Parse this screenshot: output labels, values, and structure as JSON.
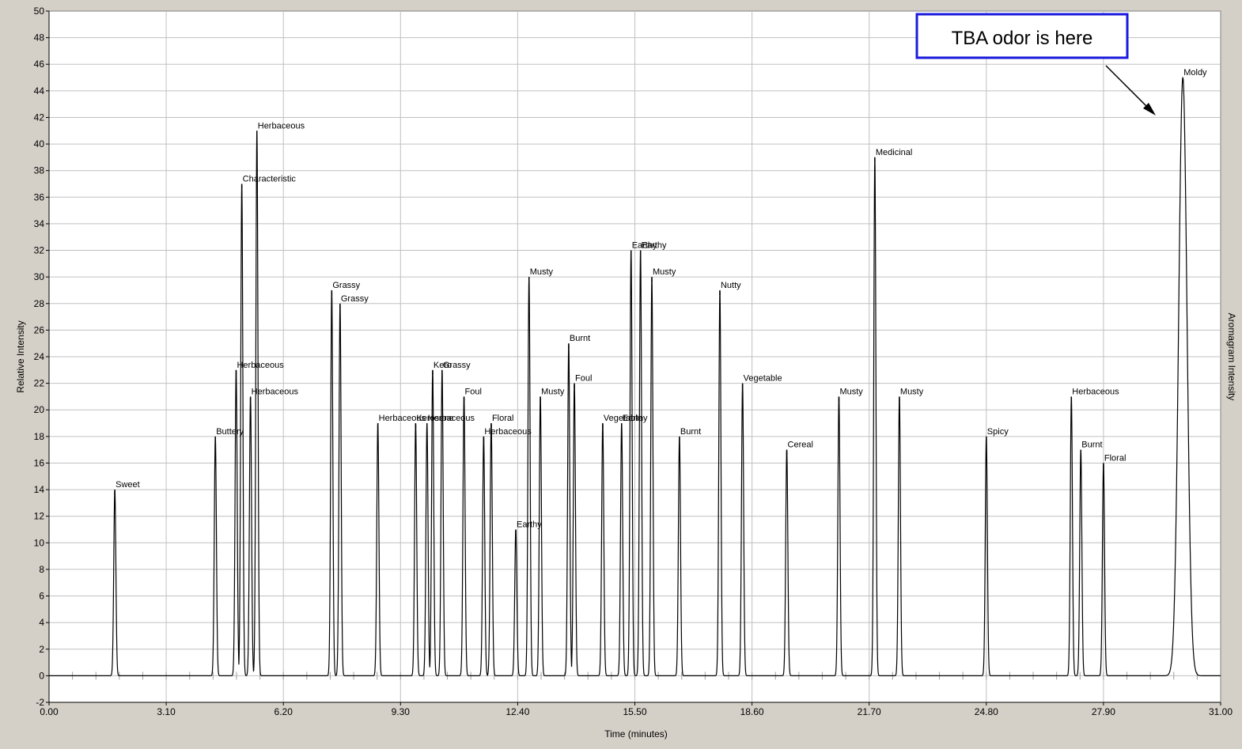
{
  "chart_data": {
    "type": "line",
    "xlabel": "Time (minutes)",
    "ylabel": "Relative Intensity",
    "y2label": "Aromagram Intensity",
    "xlim": [
      0,
      31
    ],
    "ylim": [
      -2,
      50
    ],
    "xticks": [
      "0.00",
      "3.10",
      "6.20",
      "9.30",
      "12.40",
      "15.50",
      "18.60",
      "21.70",
      "24.80",
      "27.90",
      "31.00"
    ],
    "yticks": [
      "-2",
      "0",
      "2",
      "4",
      "6",
      "8",
      "10",
      "12",
      "14",
      "16",
      "18",
      "20",
      "22",
      "24",
      "26",
      "28",
      "30",
      "32",
      "34",
      "36",
      "38",
      "40",
      "42",
      "44",
      "46",
      "48",
      "50"
    ],
    "grid": true,
    "line_color": "#000000",
    "plot_background": "#ffffff",
    "annotation": {
      "text": "TBA odor is here",
      "border_color": "#1a1adc",
      "points_to": "Moldy"
    },
    "peaks": [
      {
        "x": 1.74,
        "y": 14,
        "label": "Sweet"
      },
      {
        "x": 4.4,
        "y": 18,
        "label": "Buttery"
      },
      {
        "x": 4.95,
        "y": 23,
        "label": "Herbaceous"
      },
      {
        "x": 5.1,
        "y": 37,
        "label": "Characteristic"
      },
      {
        "x": 5.33,
        "y": 21,
        "label": "Herbaceous"
      },
      {
        "x": 5.5,
        "y": 41,
        "label": "Herbaceous"
      },
      {
        "x": 7.48,
        "y": 29,
        "label": "Grassy"
      },
      {
        "x": 7.7,
        "y": 28,
        "label": "Grassy"
      },
      {
        "x": 8.7,
        "y": 19,
        "label": "Herbaceous"
      },
      {
        "x": 9.7,
        "y": 19,
        "label": "Kerosene"
      },
      {
        "x": 10.0,
        "y": 19,
        "label": "Herbaceous"
      },
      {
        "x": 10.15,
        "y": 23,
        "label": "Kero"
      },
      {
        "x": 10.4,
        "y": 23,
        "label": "Grassy"
      },
      {
        "x": 10.98,
        "y": 21,
        "label": "Foul"
      },
      {
        "x": 11.5,
        "y": 18,
        "label": "Herbaceous"
      },
      {
        "x": 11.7,
        "y": 19,
        "label": "Floral"
      },
      {
        "x": 12.35,
        "y": 11,
        "label": "Earthy"
      },
      {
        "x": 12.7,
        "y": 30,
        "label": "Musty"
      },
      {
        "x": 13.0,
        "y": 21,
        "label": "Musty"
      },
      {
        "x": 13.75,
        "y": 25,
        "label": "Burnt"
      },
      {
        "x": 13.9,
        "y": 22,
        "label": "Foul"
      },
      {
        "x": 14.65,
        "y": 19,
        "label": "Vegetable"
      },
      {
        "x": 15.15,
        "y": 19,
        "label": "Earthy"
      },
      {
        "x": 15.4,
        "y": 32,
        "label": "Earthy"
      },
      {
        "x": 15.65,
        "y": 32,
        "label": "Earthy"
      },
      {
        "x": 15.95,
        "y": 30,
        "label": "Musty"
      },
      {
        "x": 16.68,
        "y": 18,
        "label": "Burnt"
      },
      {
        "x": 17.75,
        "y": 29,
        "label": "Nutty"
      },
      {
        "x": 18.35,
        "y": 22,
        "label": "Vegetable"
      },
      {
        "x": 19.52,
        "y": 17,
        "label": "Cereal"
      },
      {
        "x": 20.9,
        "y": 21,
        "label": "Musty"
      },
      {
        "x": 21.85,
        "y": 39,
        "label": "Medicinal"
      },
      {
        "x": 22.5,
        "y": 21,
        "label": "Musty"
      },
      {
        "x": 24.8,
        "y": 18,
        "label": "Spicy"
      },
      {
        "x": 27.05,
        "y": 21,
        "label": "Herbaceous"
      },
      {
        "x": 27.3,
        "y": 17,
        "label": "Burnt"
      },
      {
        "x": 27.9,
        "y": 16,
        "label": "Floral"
      },
      {
        "x": 30.0,
        "y": 45,
        "label": "Moldy"
      }
    ]
  }
}
